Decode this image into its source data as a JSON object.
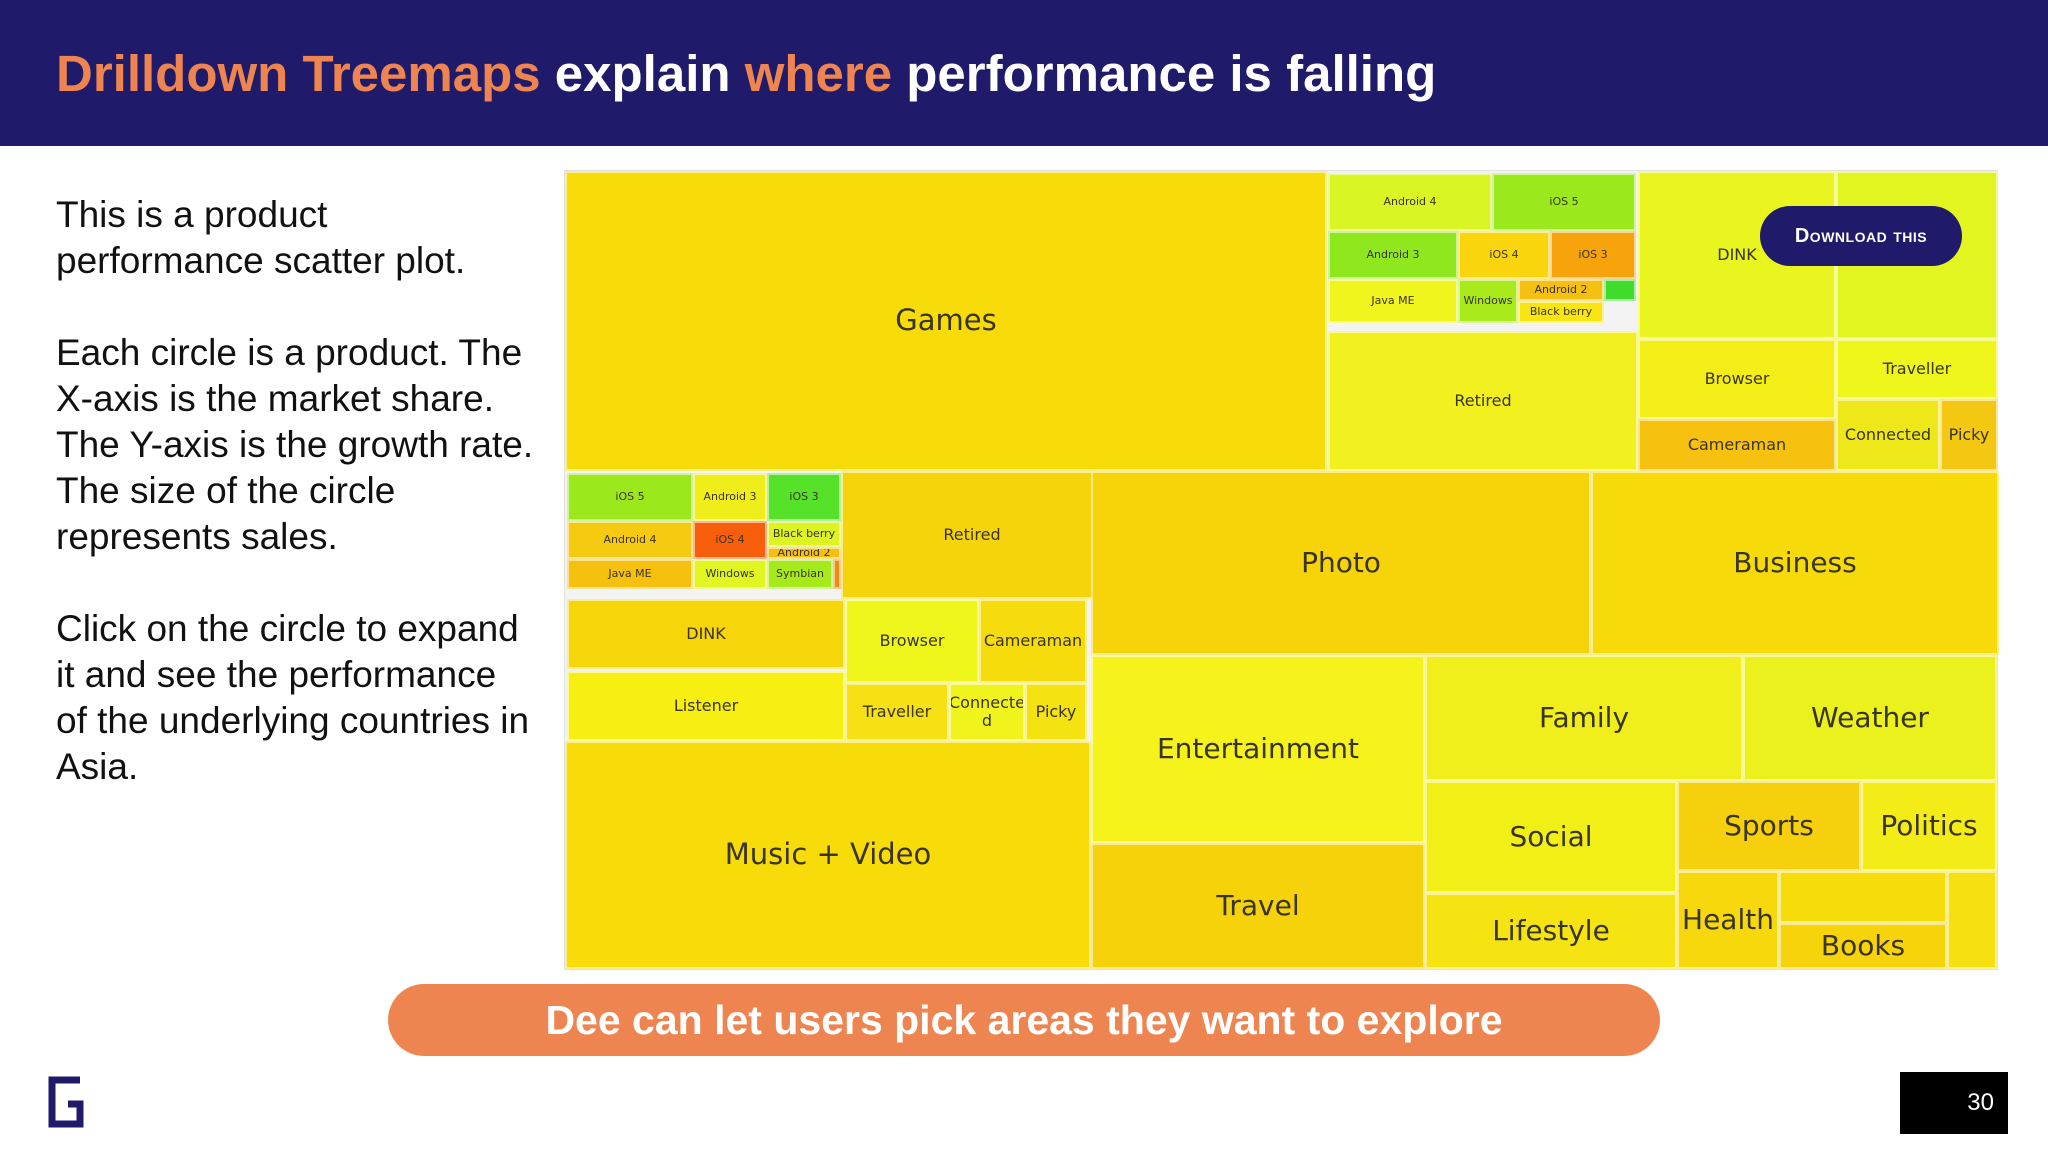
{
  "header": {
    "title_parts": [
      {
        "text": "Drilldown Treemaps ",
        "highlight": true
      },
      {
        "text": "explain ",
        "highlight": false
      },
      {
        "text": "where ",
        "highlight": true
      },
      {
        "text": "performance is falling",
        "highlight": false
      }
    ]
  },
  "body_paragraphs": [
    "This is a product performance scatter plot.",
    "Each circle is a product. The X-axis is the market share. The Y-axis is the growth rate. The size of the circle represents sales.",
    "Click on the circle to expand it and see the performance of the underlying countries in Asia."
  ],
  "download_button": {
    "label": "Download this"
  },
  "banner": {
    "text": "Dee can let users pick areas they want to explore"
  },
  "page_number": "30",
  "colors": {
    "navy": "#201a6b",
    "orange": "#ee8550",
    "treemap_yellow": "#f8dc0a",
    "treemap_lime": "#e4f51c",
    "treemap_green": "#8fe81e",
    "treemap_orange": "#f29a0c"
  },
  "treemap": {
    "tiles": [
      {
        "label": "Games",
        "color": "#f8dc0a",
        "size": "lg"
      },
      {
        "label": "Android 4",
        "color": "#d9f523",
        "size": "xs"
      },
      {
        "label": "iOS 5",
        "color": "#9be81c",
        "size": "xs"
      },
      {
        "label": "Android 3",
        "color": "#8fe81e",
        "size": "xs"
      },
      {
        "label": "iOS 4",
        "color": "#fad40c",
        "size": "xs"
      },
      {
        "label": "iOS 3",
        "color": "#f6a30c",
        "size": "xs"
      },
      {
        "label": "Java ME",
        "color": "#f1f51e",
        "size": "xs"
      },
      {
        "label": "Windows",
        "color": "#a9ea1c",
        "size": "xs"
      },
      {
        "label": "Android 2",
        "color": "#f6c012",
        "size": "xs"
      },
      {
        "label": "Black berry",
        "color": "#f8e512",
        "size": "xs"
      },
      {
        "label": "",
        "color": "#3fdc2c",
        "size": "xs"
      },
      {
        "label": "Retired",
        "color": "#f2f01e",
        "size": "sm"
      },
      {
        "label": "DINK",
        "color": "#eaf41e",
        "size": "sm"
      },
      {
        "label": "",
        "color": "#e2f520",
        "size": "sm"
      },
      {
        "label": "Browser",
        "color": "#f3ee17",
        "size": "sm"
      },
      {
        "label": "Traveller",
        "color": "#eef61c",
        "size": "sm"
      },
      {
        "label": "Cameraman",
        "color": "#f6c20f",
        "size": "sm"
      },
      {
        "label": "Connected",
        "color": "#eee81a",
        "size": "sm"
      },
      {
        "label": "Picky",
        "color": "#f4c712",
        "size": "sm"
      },
      {
        "label": "iOS 5",
        "color": "#9be81c",
        "size": "xs"
      },
      {
        "label": "Android 3",
        "color": "#f0ee1a",
        "size": "xs"
      },
      {
        "label": "iOS 3",
        "color": "#56e228",
        "size": "xs"
      },
      {
        "label": "Android 4",
        "color": "#f6ca10",
        "size": "xs"
      },
      {
        "label": "iOS 4",
        "color": "#f75f0d",
        "size": "xs"
      },
      {
        "label": "Black berry",
        "color": "#ddf322",
        "size": "xs"
      },
      {
        "label": "Android 2",
        "color": "#f6bf10",
        "size": "xs"
      },
      {
        "label": "Java ME",
        "color": "#f6c00f",
        "size": "xs"
      },
      {
        "label": "Windows",
        "color": "#e0f521",
        "size": "xs"
      },
      {
        "label": "Symbian",
        "color": "#a7ea1c",
        "size": "xs"
      },
      {
        "label": "",
        "color": "#f08a10",
        "size": "xs"
      },
      {
        "label": "Retired",
        "color": "#f6d40c",
        "size": "sm"
      },
      {
        "label": "DINK",
        "color": "#f6d60b",
        "size": "sm"
      },
      {
        "label": "Browser",
        "color": "#eef61c",
        "size": "sm"
      },
      {
        "label": "Cameraman",
        "color": "#f6dc0d",
        "size": "sm"
      },
      {
        "label": "Listener",
        "color": "#f8ef12",
        "size": "sm"
      },
      {
        "label": "Traveller",
        "color": "#f7e014",
        "size": "sm"
      },
      {
        "label": "Connecte d",
        "color": "#f1f31c",
        "size": "sm"
      },
      {
        "label": "Picky",
        "color": "#f4e211",
        "size": "sm"
      },
      {
        "label": "Photo",
        "color": "#f7d30a",
        "size": "md"
      },
      {
        "label": "Business",
        "color": "#f7da0a",
        "size": "md"
      },
      {
        "label": "Entertainment",
        "color": "#f5f21c",
        "size": "md"
      },
      {
        "label": "Family",
        "color": "#f0ef1b",
        "size": "md"
      },
      {
        "label": "Weather",
        "color": "#eaf11c",
        "size": "md"
      },
      {
        "label": "Social",
        "color": "#f2ef17",
        "size": "md"
      },
      {
        "label": "Sports",
        "color": "#f6d00c",
        "size": "md"
      },
      {
        "label": "Politics",
        "color": "#f3ec16",
        "size": "md"
      },
      {
        "label": "Travel",
        "color": "#f6d20b",
        "size": "md"
      },
      {
        "label": "Lifestyle",
        "color": "#f5e312",
        "size": "md"
      },
      {
        "label": "Health",
        "color": "#f6d80c",
        "size": "md"
      },
      {
        "label": "",
        "color": "#f7dc0b",
        "size": "md"
      },
      {
        "label": "",
        "color": "#f6e012",
        "size": "md"
      },
      {
        "label": "Books",
        "color": "#f6d30b",
        "size": "md"
      },
      {
        "label": "Music + Video",
        "color": "#f8dc0a",
        "size": "lg"
      }
    ]
  }
}
